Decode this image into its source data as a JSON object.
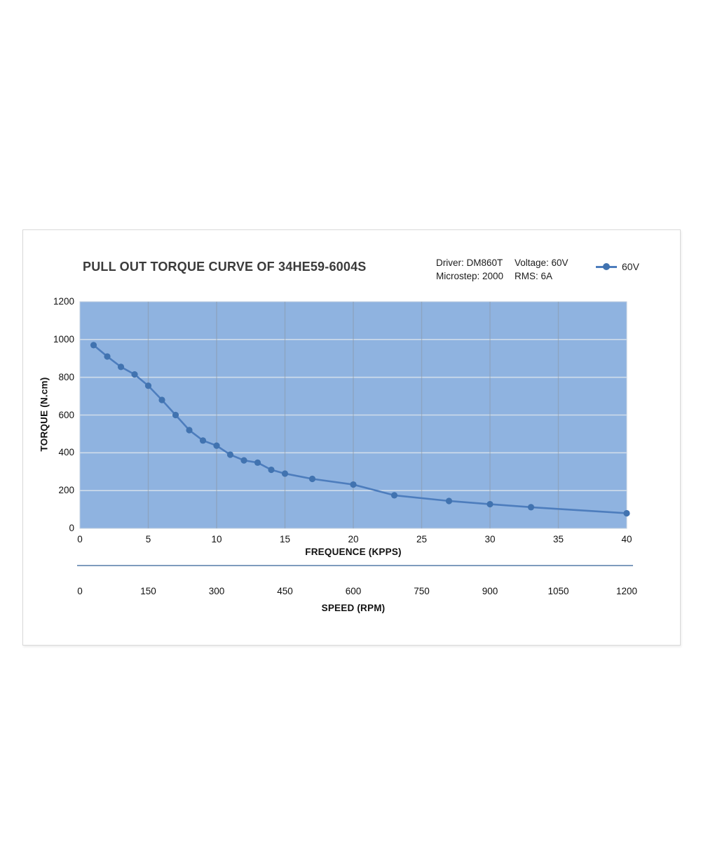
{
  "chart_data": {
    "type": "line",
    "title": "PULL OUT TORQUE CURVE OF 34HE59-6004S",
    "info": {
      "driver": "Driver: DM860T",
      "microstep": "Microstep: 2000",
      "voltage": "Voltage: 60V",
      "rms": "RMS: 6A"
    },
    "legend": {
      "label": "60V",
      "position": "top-right"
    },
    "xlabel": "FREQUENCE (KPPS)",
    "ylabel": "TORQUE (N.cm)",
    "xlim": [
      0,
      40
    ],
    "ylim": [
      0,
      1200
    ],
    "x_ticks": [
      0,
      5,
      10,
      15,
      20,
      25,
      30,
      35,
      40
    ],
    "y_ticks": [
      0,
      200,
      400,
      600,
      800,
      1000,
      1200
    ],
    "secondary_x_axis": {
      "label": "SPEED (RPM)",
      "ticks": [
        0,
        150,
        300,
        450,
        600,
        750,
        900,
        1050,
        1200
      ]
    },
    "grid": "on",
    "series": [
      {
        "name": "60V",
        "x": [
          1,
          2,
          3,
          4,
          5,
          6,
          7,
          8,
          9,
          10,
          11,
          12,
          13,
          14,
          15,
          17,
          20,
          23,
          27,
          30,
          33,
          40
        ],
        "y": [
          970,
          910,
          855,
          815,
          755,
          680,
          600,
          520,
          465,
          438,
          390,
          360,
          348,
          310,
          290,
          262,
          232,
          175,
          145,
          128,
          112,
          80
        ]
      }
    ],
    "colors": {
      "plot_bg": "#8fb3e0",
      "plot_border": "#c2cfdf",
      "line": "#4d7dbd",
      "marker": "#4173b0",
      "h_grid": "#cfdcea",
      "v_grid": "#8a99a9",
      "axis_line": "#7e9bbd"
    }
  }
}
